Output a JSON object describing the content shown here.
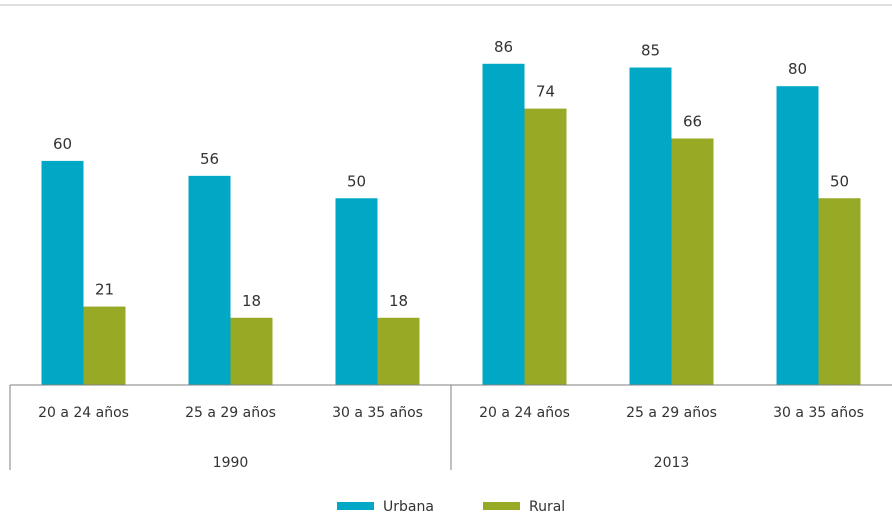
{
  "chart_data": {
    "type": "bar",
    "groups": [
      {
        "label": "1990",
        "categories": [
          "20 a 24 años",
          "25 a 29 años",
          "30 a 35 años"
        ],
        "series": [
          {
            "name": "Urbana",
            "values": [
              60,
              56,
              50
            ]
          },
          {
            "name": "Rural",
            "values": [
              21,
              18,
              18
            ]
          }
        ]
      },
      {
        "label": "2013",
        "categories": [
          "20 a 24 años",
          "25 a 29 años",
          "30 a 35 años"
        ],
        "series": [
          {
            "name": "Urbana",
            "values": [
              86,
              85,
              80
            ]
          },
          {
            "name": "Rural",
            "values": [
              74,
              66,
              50
            ]
          }
        ]
      }
    ],
    "legend": [
      {
        "name": "Urbana",
        "color": "#00a8c6"
      },
      {
        "name": "Rural",
        "color": "#97a925"
      }
    ],
    "legend_position": "bottom",
    "ylim": [
      0,
      100
    ],
    "grid": false
  }
}
